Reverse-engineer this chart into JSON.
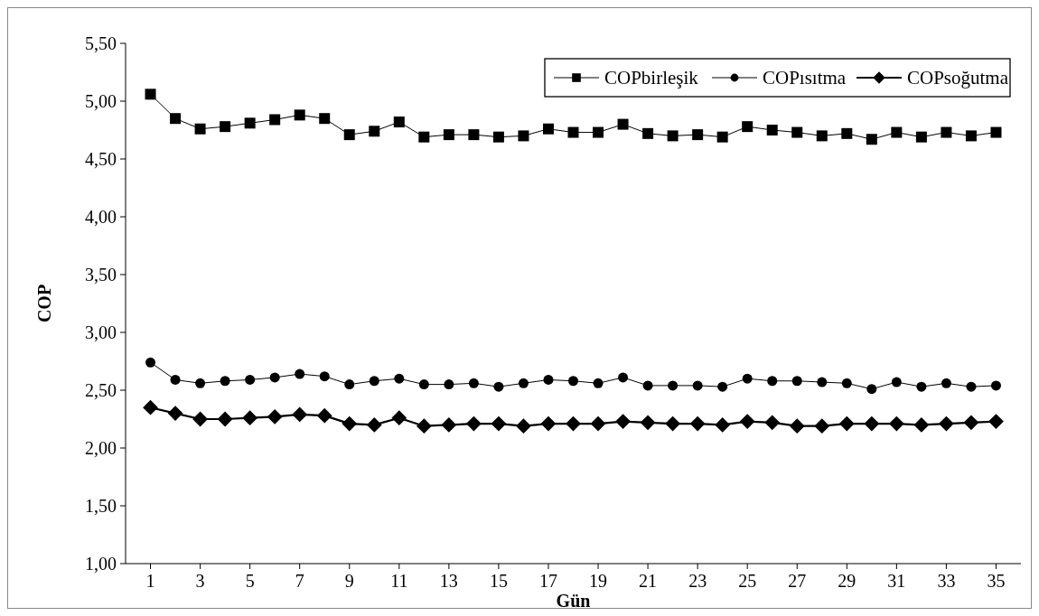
{
  "chart_data": {
    "type": "line",
    "xlabel": "Gün",
    "ylabel": "COP",
    "x": [
      1,
      2,
      3,
      4,
      5,
      6,
      7,
      8,
      9,
      10,
      11,
      12,
      13,
      14,
      15,
      16,
      17,
      18,
      19,
      20,
      21,
      22,
      23,
      24,
      25,
      26,
      27,
      28,
      29,
      30,
      31,
      32,
      33,
      34,
      35
    ],
    "xlim": [
      0,
      36
    ],
    "xticks": [
      1,
      3,
      5,
      7,
      9,
      11,
      13,
      15,
      17,
      19,
      21,
      23,
      25,
      27,
      29,
      31,
      33,
      35
    ],
    "ylim": [
      1,
      5.5
    ],
    "yticks": [
      {
        "value": 1,
        "label": "1,00"
      },
      {
        "value": 1.5,
        "label": "1,50"
      },
      {
        "value": 2,
        "label": "2,00"
      },
      {
        "value": 2.5,
        "label": "2,50"
      },
      {
        "value": 3,
        "label": "3,00"
      },
      {
        "value": 3.5,
        "label": "3,50"
      },
      {
        "value": 4,
        "label": "4,00"
      },
      {
        "value": 4.5,
        "label": "4,50"
      },
      {
        "value": 5,
        "label": "5,00"
      },
      {
        "value": 5.5,
        "label": "5,50"
      }
    ],
    "grid": false,
    "legend": "top right",
    "line_style": "solid",
    "series": [
      {
        "name": "COPbirleşik",
        "color": "#000000",
        "marker": "square",
        "values": [
          5.06,
          4.85,
          4.76,
          4.78,
          4.81,
          4.84,
          4.88,
          4.85,
          4.71,
          4.74,
          4.82,
          4.69,
          4.71,
          4.71,
          4.69,
          4.7,
          4.76,
          4.73,
          4.73,
          4.8,
          4.72,
          4.7,
          4.71,
          4.69,
          4.78,
          4.75,
          4.73,
          4.7,
          4.72,
          4.67,
          4.73,
          4.69,
          4.73,
          4.7,
          4.73
        ]
      },
      {
        "name": "COPısıtma",
        "color": "#000000",
        "marker": "circle",
        "values": [
          2.74,
          2.59,
          2.56,
          2.58,
          2.59,
          2.61,
          2.64,
          2.62,
          2.55,
          2.58,
          2.6,
          2.55,
          2.55,
          2.56,
          2.53,
          2.56,
          2.59,
          2.58,
          2.56,
          2.61,
          2.54,
          2.54,
          2.54,
          2.53,
          2.6,
          2.58,
          2.58,
          2.57,
          2.56,
          2.51,
          2.57,
          2.53,
          2.56,
          2.53,
          2.54
        ]
      },
      {
        "name": "COPsoğutma",
        "color": "#000000",
        "marker": "diamond",
        "values": [
          2.35,
          2.3,
          2.25,
          2.25,
          2.26,
          2.27,
          2.29,
          2.28,
          2.21,
          2.2,
          2.26,
          2.19,
          2.2,
          2.21,
          2.21,
          2.19,
          2.21,
          2.21,
          2.21,
          2.23,
          2.22,
          2.21,
          2.21,
          2.2,
          2.23,
          2.22,
          2.19,
          2.19,
          2.21,
          2.21,
          2.21,
          2.2,
          2.21,
          2.22,
          2.23
        ]
      }
    ]
  }
}
